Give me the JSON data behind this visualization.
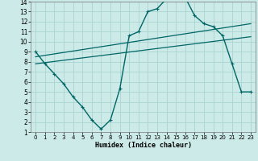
{
  "xlabel": "Humidex (Indice chaleur)",
  "ylabel": "",
  "bg_color": "#cceae8",
  "grid_color": "#aad4d0",
  "line_color": "#006666",
  "xlim": [
    -0.5,
    23.5
  ],
  "ylim": [
    1,
    14
  ],
  "xticks": [
    0,
    1,
    2,
    3,
    4,
    5,
    6,
    7,
    8,
    9,
    10,
    11,
    12,
    13,
    14,
    15,
    16,
    17,
    18,
    19,
    20,
    21,
    22,
    23
  ],
  "yticks": [
    1,
    2,
    3,
    4,
    5,
    6,
    7,
    8,
    9,
    10,
    11,
    12,
    13,
    14
  ],
  "curve1_x": [
    0,
    1,
    2,
    3,
    4,
    5,
    6,
    7,
    8,
    9,
    10,
    11,
    12,
    13,
    14,
    15,
    16,
    17,
    18,
    19,
    20,
    21,
    22,
    23
  ],
  "curve1_y": [
    9.0,
    7.8,
    6.8,
    5.8,
    4.5,
    3.5,
    2.2,
    1.3,
    2.2,
    5.3,
    10.6,
    11.0,
    13.0,
    13.3,
    14.3,
    14.4,
    14.4,
    12.6,
    11.8,
    11.5,
    10.6,
    7.8,
    5.0,
    5.0
  ],
  "curve2_x": [
    0,
    23
  ],
  "curve2_y": [
    7.8,
    10.5
  ],
  "curve3_x": [
    0,
    23
  ],
  "curve3_y": [
    8.5,
    11.8
  ]
}
